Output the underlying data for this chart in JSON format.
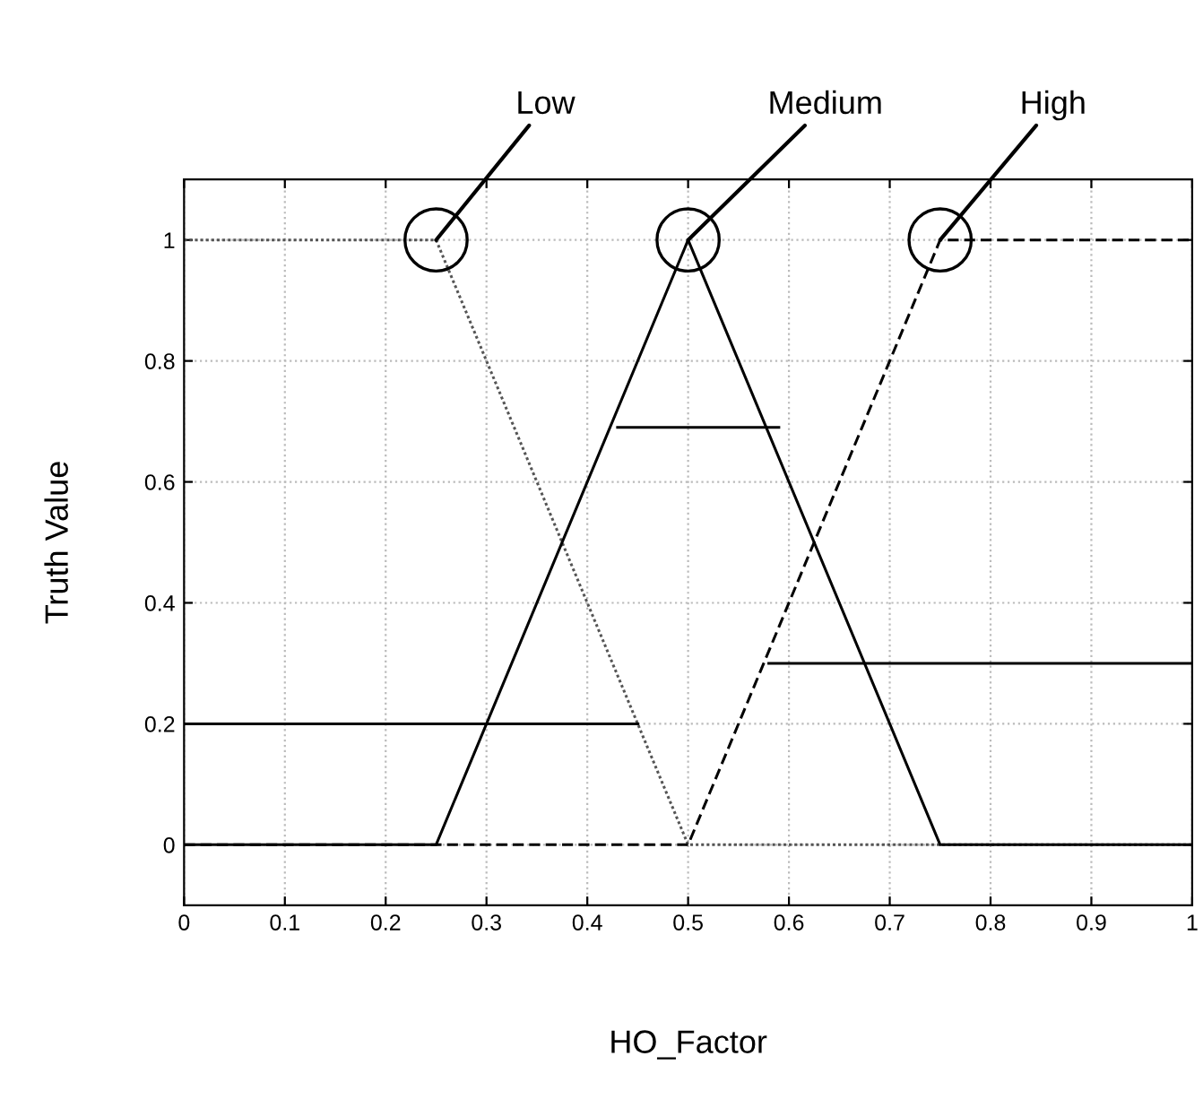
{
  "chart_data": {
    "type": "line",
    "xlabel": "HO_Factor",
    "ylabel": "Truth Value",
    "series": [
      {
        "x": [
          0,
          0.25,
          0.5,
          1
        ],
        "values": [
          1,
          1,
          0,
          0
        ],
        "color": "#555555",
        "line_style": "dotted"
      },
      {
        "x": [
          0,
          0.25,
          0.5,
          0.75,
          1
        ],
        "values": [
          0,
          0,
          1,
          0,
          0
        ],
        "color": "#000000",
        "line_style": "solid"
      },
      {
        "x": [
          0,
          0.5,
          0.75,
          1
        ],
        "values": [
          0,
          0,
          1,
          1
        ],
        "color": "#000000",
        "line_style": "dashed"
      },
      {
        "x": [
          0,
          0.45
        ],
        "values": [
          0.2,
          0.2
        ],
        "color": "#000000",
        "line_style": "solid"
      },
      {
        "x": [
          0.43,
          0.59
        ],
        "values": [
          0.69,
          0.69
        ],
        "color": "#000000",
        "line_style": "solid"
      },
      {
        "x": [
          0.58,
          1
        ],
        "values": [
          0.3,
          0.3
        ],
        "color": "#000000",
        "line_style": "solid"
      }
    ],
    "annotations": [
      {
        "text": "Low",
        "x": 0.25,
        "y": 1
      },
      {
        "text": "Medium",
        "x": 0.5,
        "y": 1
      },
      {
        "text": "High",
        "x": 0.75,
        "y": 1
      }
    ],
    "xlim": [
      0,
      1
    ],
    "ylim": [
      -0.1,
      1.1
    ],
    "xticks": [
      0,
      0.1,
      0.2,
      0.3,
      0.4,
      0.5,
      0.6,
      0.7,
      0.8,
      0.9,
      1
    ],
    "yticks": [
      0,
      0.2,
      0.4,
      0.6,
      0.8,
      1
    ],
    "grid": true
  }
}
